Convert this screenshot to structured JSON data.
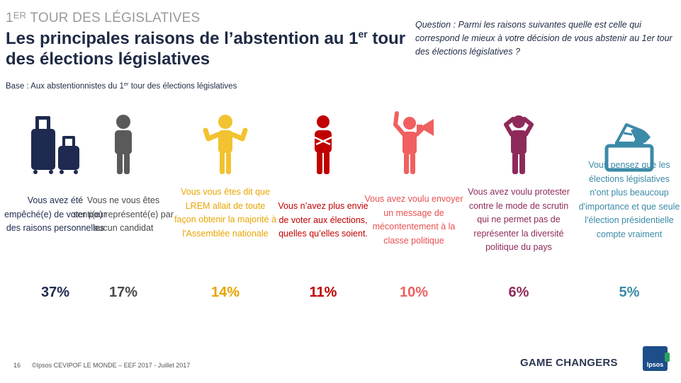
{
  "header": {
    "kicker_main": "TOUR DES LÉGISLATIVES",
    "kicker_prefix": "1",
    "kicker_sup": "ER",
    "title_part1": "Les principales raisons de l’abstention au 1",
    "title_sup": "er",
    "title_part2": " tour des élections législatives",
    "question": "Question : Parmi les raisons suivantes quelle est celle qui correspond le mieux à votre décision de vous abstenir au 1er tour des élections législatives ?",
    "base_prefix": "Base  :  Aux abstentionnistes du 1",
    "base_sup": "er",
    "base_suffix": " tour des élections législatives"
  },
  "reasons": [
    {
      "label": "Vous avez été empêché(e) de voter pour des raisons personnelles",
      "value": "37%",
      "color": "#1e2a4f",
      "icon": "suitcase-icon"
    },
    {
      "label": "Vous ne vous êtes senti(e) représenté(e) par aucun candidat",
      "value": "17%",
      "color": "#4a4a4a",
      "icon": "person-icon"
    },
    {
      "label": "Vous vous êtes dit que LREM allait de toute façon obtenir la majorité à l'Assemblée nationale",
      "value": "14%",
      "color": "#e8a500",
      "icon": "shrug-person-icon"
    },
    {
      "label": "Vous n’avez plus envie de voter aux élections, quelles qu’elles soient.",
      "value": "11%",
      "color": "#c00000",
      "icon": "arms-crossed-person-icon"
    },
    {
      "label": "Vous avez voulu envoyer un message de mécontentement à la classe politique",
      "value": "10%",
      "color": "#f06060",
      "icon": "megaphone-person-icon"
    },
    {
      "label": "Vous avez voulu protester contre le mode de scrutin qui ne permet pas de représenter la diversité politique du pays",
      "value": "6%",
      "color": "#8e2a5a",
      "icon": "frustrated-person-icon"
    },
    {
      "label": "Vous pensez que les élections législatives n'ont plus beaucoup d'importance et que seule l'élection présidentielle compte vraiment",
      "value": "5%",
      "color": "#3b8aa8",
      "icon": "ballot-box-icon"
    }
  ],
  "footer": {
    "page_number": "16",
    "source": "©Ipsos  CEVIPOF LE MONDE – EEF 2017 -  Juillet 2017",
    "tagline": "GAME CHANGERS",
    "logo_text": "Ipsos"
  }
}
